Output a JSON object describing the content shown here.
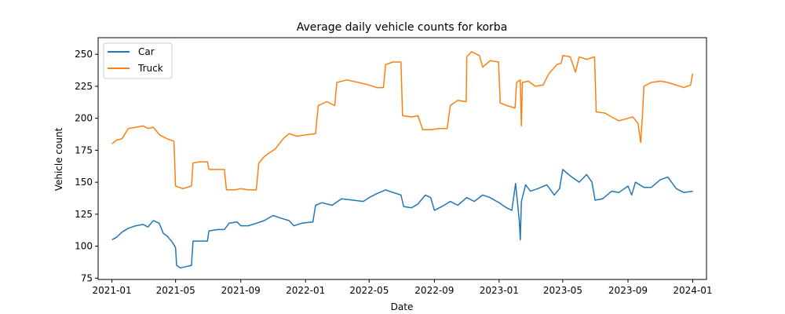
{
  "chart_data": {
    "type": "line",
    "title": "Average daily vehicle counts for korba",
    "xlabel": "Date",
    "ylabel": "Vehicle count",
    "xlim": [
      "2020-12-06",
      "2024-01-27"
    ],
    "ylim": [
      74,
      263
    ],
    "x_ticks": [
      "2021-01",
      "2021-05",
      "2021-09",
      "2022-01",
      "2022-05",
      "2022-09",
      "2023-01",
      "2023-05",
      "2023-09",
      "2024-01"
    ],
    "y_ticks": [
      75,
      100,
      125,
      150,
      175,
      200,
      225,
      250
    ],
    "legend": {
      "position": "upper left"
    },
    "grid": false,
    "series": [
      {
        "name": "Car",
        "color": "#1f77b4",
        "points": [
          [
            "2021-01-01",
            105
          ],
          [
            "2021-01-10",
            107
          ],
          [
            "2021-01-20",
            111
          ],
          [
            "2021-02-01",
            114
          ],
          [
            "2021-02-15",
            116
          ],
          [
            "2021-03-01",
            117
          ],
          [
            "2021-03-10",
            115
          ],
          [
            "2021-03-20",
            120
          ],
          [
            "2021-03-31",
            118
          ],
          [
            "2021-04-08",
            110
          ],
          [
            "2021-04-15",
            108
          ],
          [
            "2021-04-25",
            103
          ],
          [
            "2021-05-01",
            99
          ],
          [
            "2021-05-03",
            85
          ],
          [
            "2021-05-10",
            83
          ],
          [
            "2021-05-20",
            84
          ],
          [
            "2021-05-31",
            85
          ],
          [
            "2021-06-03",
            104
          ],
          [
            "2021-06-15",
            104
          ],
          [
            "2021-06-30",
            104
          ],
          [
            "2021-07-03",
            112
          ],
          [
            "2021-07-20",
            113
          ],
          [
            "2021-08-01",
            113
          ],
          [
            "2021-08-10",
            118
          ],
          [
            "2021-08-25",
            119
          ],
          [
            "2021-09-01",
            116
          ],
          [
            "2021-09-15",
            116
          ],
          [
            "2021-10-01",
            118
          ],
          [
            "2021-10-15",
            120
          ],
          [
            "2021-11-01",
            124
          ],
          [
            "2021-11-15",
            122
          ],
          [
            "2021-12-01",
            120
          ],
          [
            "2021-12-10",
            116
          ],
          [
            "2021-12-25",
            118
          ],
          [
            "2022-01-15",
            119
          ],
          [
            "2022-01-20",
            132
          ],
          [
            "2022-02-01",
            134
          ],
          [
            "2022-02-20",
            132
          ],
          [
            "2022-03-10",
            137
          ],
          [
            "2022-04-01",
            136
          ],
          [
            "2022-04-20",
            135
          ],
          [
            "2022-05-01",
            138
          ],
          [
            "2022-05-15",
            141
          ],
          [
            "2022-06-01",
            144
          ],
          [
            "2022-06-15",
            142
          ],
          [
            "2022-06-30",
            140
          ],
          [
            "2022-07-05",
            131
          ],
          [
            "2022-07-20",
            130
          ],
          [
            "2022-08-01",
            133
          ],
          [
            "2022-08-15",
            140
          ],
          [
            "2022-08-25",
            138
          ],
          [
            "2022-09-01",
            128
          ],
          [
            "2022-09-15",
            131
          ],
          [
            "2022-10-01",
            135
          ],
          [
            "2022-10-15",
            132
          ],
          [
            "2022-11-01",
            138
          ],
          [
            "2022-11-15",
            135
          ],
          [
            "2022-12-01",
            140
          ],
          [
            "2022-12-15",
            138
          ],
          [
            "2023-01-01",
            134
          ],
          [
            "2023-01-15",
            130
          ],
          [
            "2023-01-25",
            128
          ],
          [
            "2023-02-01",
            149
          ],
          [
            "2023-02-08",
            120
          ],
          [
            "2023-02-10",
            105
          ],
          [
            "2023-02-12",
            135
          ],
          [
            "2023-02-20",
            148
          ],
          [
            "2023-03-01",
            143
          ],
          [
            "2023-03-15",
            145
          ],
          [
            "2023-04-01",
            148
          ],
          [
            "2023-04-15",
            140
          ],
          [
            "2023-04-25",
            145
          ],
          [
            "2023-05-01",
            160
          ],
          [
            "2023-05-15",
            155
          ],
          [
            "2023-06-01",
            150
          ],
          [
            "2023-06-15",
            156
          ],
          [
            "2023-06-25",
            150
          ],
          [
            "2023-07-01",
            136
          ],
          [
            "2023-07-15",
            137
          ],
          [
            "2023-08-01",
            143
          ],
          [
            "2023-08-15",
            142
          ],
          [
            "2023-09-01",
            147
          ],
          [
            "2023-09-08",
            140
          ],
          [
            "2023-09-15",
            150
          ],
          [
            "2023-10-01",
            146
          ],
          [
            "2023-10-15",
            146
          ],
          [
            "2023-11-01",
            152
          ],
          [
            "2023-11-15",
            154
          ],
          [
            "2023-12-01",
            145
          ],
          [
            "2023-12-15",
            142
          ],
          [
            "2024-01-01",
            143
          ]
        ]
      },
      {
        "name": "Truck",
        "color": "#ff7f0e",
        "points": [
          [
            "2021-01-01",
            180
          ],
          [
            "2021-01-10",
            183
          ],
          [
            "2021-01-20",
            184
          ],
          [
            "2021-02-01",
            192
          ],
          [
            "2021-02-15",
            193
          ],
          [
            "2021-03-01",
            194
          ],
          [
            "2021-03-10",
            192
          ],
          [
            "2021-03-20",
            193
          ],
          [
            "2021-04-01",
            187
          ],
          [
            "2021-04-15",
            184
          ],
          [
            "2021-04-28",
            182
          ],
          [
            "2021-05-01",
            147
          ],
          [
            "2021-05-15",
            145
          ],
          [
            "2021-05-31",
            147
          ],
          [
            "2021-06-03",
            165
          ],
          [
            "2021-06-15",
            166
          ],
          [
            "2021-06-30",
            166
          ],
          [
            "2021-07-03",
            160
          ],
          [
            "2021-07-20",
            160
          ],
          [
            "2021-08-01",
            160
          ],
          [
            "2021-08-05",
            144
          ],
          [
            "2021-08-20",
            144
          ],
          [
            "2021-09-01",
            145
          ],
          [
            "2021-09-15",
            144
          ],
          [
            "2021-09-30",
            144
          ],
          [
            "2021-10-05",
            165
          ],
          [
            "2021-10-15",
            170
          ],
          [
            "2021-10-25",
            173
          ],
          [
            "2021-11-05",
            176
          ],
          [
            "2021-11-20",
            184
          ],
          [
            "2021-12-01",
            188
          ],
          [
            "2021-12-15",
            186
          ],
          [
            "2022-01-01",
            187
          ],
          [
            "2022-01-20",
            188
          ],
          [
            "2022-01-25",
            210
          ],
          [
            "2022-02-10",
            213
          ],
          [
            "2022-02-25",
            210
          ],
          [
            "2022-03-01",
            228
          ],
          [
            "2022-03-20",
            230
          ],
          [
            "2022-04-10",
            228
          ],
          [
            "2022-05-01",
            226
          ],
          [
            "2022-05-15",
            224
          ],
          [
            "2022-05-28",
            224
          ],
          [
            "2022-06-01",
            242
          ],
          [
            "2022-06-15",
            244
          ],
          [
            "2022-06-30",
            244
          ],
          [
            "2022-07-03",
            202
          ],
          [
            "2022-07-20",
            201
          ],
          [
            "2022-08-01",
            202
          ],
          [
            "2022-08-10",
            191
          ],
          [
            "2022-08-25",
            191
          ],
          [
            "2022-09-10",
            192
          ],
          [
            "2022-09-25",
            192
          ],
          [
            "2022-10-01",
            210
          ],
          [
            "2022-10-15",
            214
          ],
          [
            "2022-10-31",
            213
          ],
          [
            "2022-11-01",
            248
          ],
          [
            "2022-11-10",
            252
          ],
          [
            "2022-11-25",
            249
          ],
          [
            "2022-12-01",
            240
          ],
          [
            "2022-12-15",
            245
          ],
          [
            "2022-12-31",
            244
          ],
          [
            "2023-01-03",
            212
          ],
          [
            "2023-01-15",
            210
          ],
          [
            "2023-01-31",
            208
          ],
          [
            "2023-02-03",
            228
          ],
          [
            "2023-02-10",
            230
          ],
          [
            "2023-02-12",
            194
          ],
          [
            "2023-02-14",
            228
          ],
          [
            "2023-02-25",
            229
          ],
          [
            "2023-03-10",
            225
          ],
          [
            "2023-03-25",
            226
          ],
          [
            "2023-04-05",
            235
          ],
          [
            "2023-04-20",
            242
          ],
          [
            "2023-04-28",
            243
          ],
          [
            "2023-05-01",
            249
          ],
          [
            "2023-05-15",
            248
          ],
          [
            "2023-05-25",
            236
          ],
          [
            "2023-06-01",
            248
          ],
          [
            "2023-06-15",
            246
          ],
          [
            "2023-06-30",
            248
          ],
          [
            "2023-07-03",
            205
          ],
          [
            "2023-07-20",
            204
          ],
          [
            "2023-08-01",
            201
          ],
          [
            "2023-08-15",
            198
          ],
          [
            "2023-09-01",
            200
          ],
          [
            "2023-09-10",
            201
          ],
          [
            "2023-09-20",
            196
          ],
          [
            "2023-09-25",
            181
          ],
          [
            "2023-09-28",
            200
          ],
          [
            "2023-10-01",
            225
          ],
          [
            "2023-10-15",
            228
          ],
          [
            "2023-11-01",
            229
          ],
          [
            "2023-11-15",
            228
          ],
          [
            "2023-12-01",
            226
          ],
          [
            "2023-12-15",
            224
          ],
          [
            "2023-12-28",
            226
          ],
          [
            "2024-01-01",
            235
          ]
        ]
      }
    ]
  }
}
